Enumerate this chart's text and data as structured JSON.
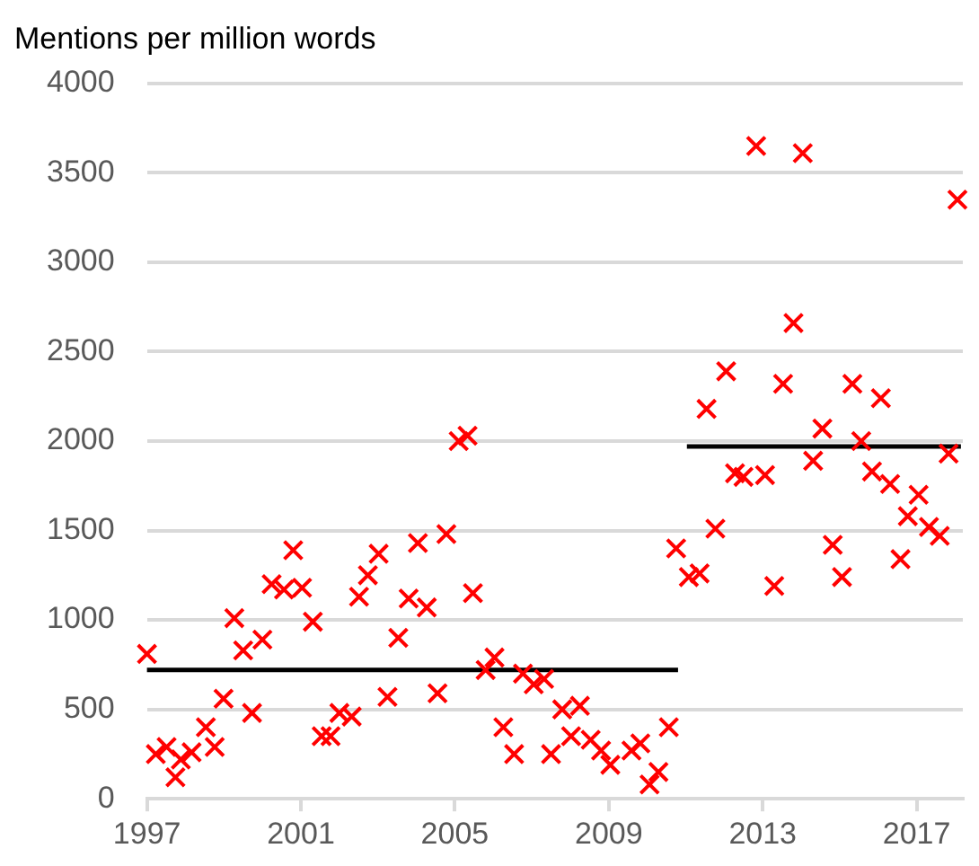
{
  "chart_data": {
    "type": "scatter",
    "title": "Mentions per million words",
    "xlim": [
      1997,
      2018.2
    ],
    "xticks": [
      1997,
      2001,
      2005,
      2009,
      2013,
      2017
    ],
    "ylim": [
      0,
      4000
    ],
    "yticks": [
      0,
      500,
      1000,
      1500,
      2000,
      2500,
      3000,
      3500,
      4000
    ],
    "grid": "y",
    "legend": false,
    "series": [
      {
        "color": "#ff0000",
        "marker": "cross",
        "x": [
          1997.0,
          1997.23,
          1997.51,
          1997.74,
          1997.88,
          1998.16,
          1998.53,
          1998.76,
          1998.99,
          1999.27,
          1999.5,
          1999.73,
          2000.0,
          2000.24,
          2000.56,
          2000.8,
          2001.03,
          2001.31,
          2001.54,
          2001.77,
          2002.0,
          2002.32,
          2002.51,
          2002.74,
          2003.02,
          2003.25,
          2003.53,
          2003.8,
          2004.04,
          2004.27,
          2004.55,
          2004.78,
          2005.1,
          2005.33,
          2005.47,
          2005.8,
          2006.03,
          2006.26,
          2006.54,
          2006.77,
          2007.05,
          2007.32,
          2007.5,
          2007.79,
          2008.02,
          2008.25,
          2008.53,
          2008.8,
          2009.04,
          2009.59,
          2009.82,
          2010.06,
          2010.29,
          2010.56,
          2010.75,
          2011.08,
          2011.36,
          2011.54,
          2011.77,
          2012.05,
          2012.28,
          2012.5,
          2012.83,
          2013.06,
          2013.3,
          2013.53,
          2013.8,
          2014.04,
          2014.31,
          2014.55,
          2014.82,
          2015.06,
          2015.33,
          2015.56,
          2015.84,
          2016.07,
          2016.31,
          2016.58,
          2016.77,
          2017.05,
          2017.32,
          2017.6,
          2017.83,
          2018.06
        ],
        "values": [
          810,
          250,
          290,
          120,
          220,
          260,
          400,
          290,
          560,
          1010,
          830,
          480,
          890,
          1200,
          1170,
          1390,
          1180,
          990,
          350,
          350,
          480,
          460,
          1130,
          1250,
          1370,
          570,
          900,
          1120,
          1430,
          1070,
          590,
          1480,
          2000,
          2030,
          1150,
          720,
          790,
          400,
          250,
          700,
          640,
          670,
          250,
          500,
          350,
          520,
          330,
          270,
          190,
          270,
          310,
          80,
          150,
          400,
          1400,
          1240,
          1260,
          2180,
          1510,
          2390,
          1820,
          1800,
          3650,
          1810,
          1190,
          2320,
          2660,
          3610,
          1890,
          2070,
          1420,
          1240,
          2320,
          2000,
          1830,
          2240,
          1760,
          1340,
          1580,
          1700,
          1520,
          1470,
          1930,
          3350
        ]
      },
      {
        "type": "line",
        "color": "#000000",
        "marker": "none",
        "x": [
          1997,
          2010.8
        ],
        "values": [
          720,
          720
        ]
      },
      {
        "type": "line",
        "color": "#000000",
        "marker": "none",
        "x": [
          2011.03,
          2018.15
        ],
        "values": [
          1970,
          1970
        ]
      }
    ]
  }
}
